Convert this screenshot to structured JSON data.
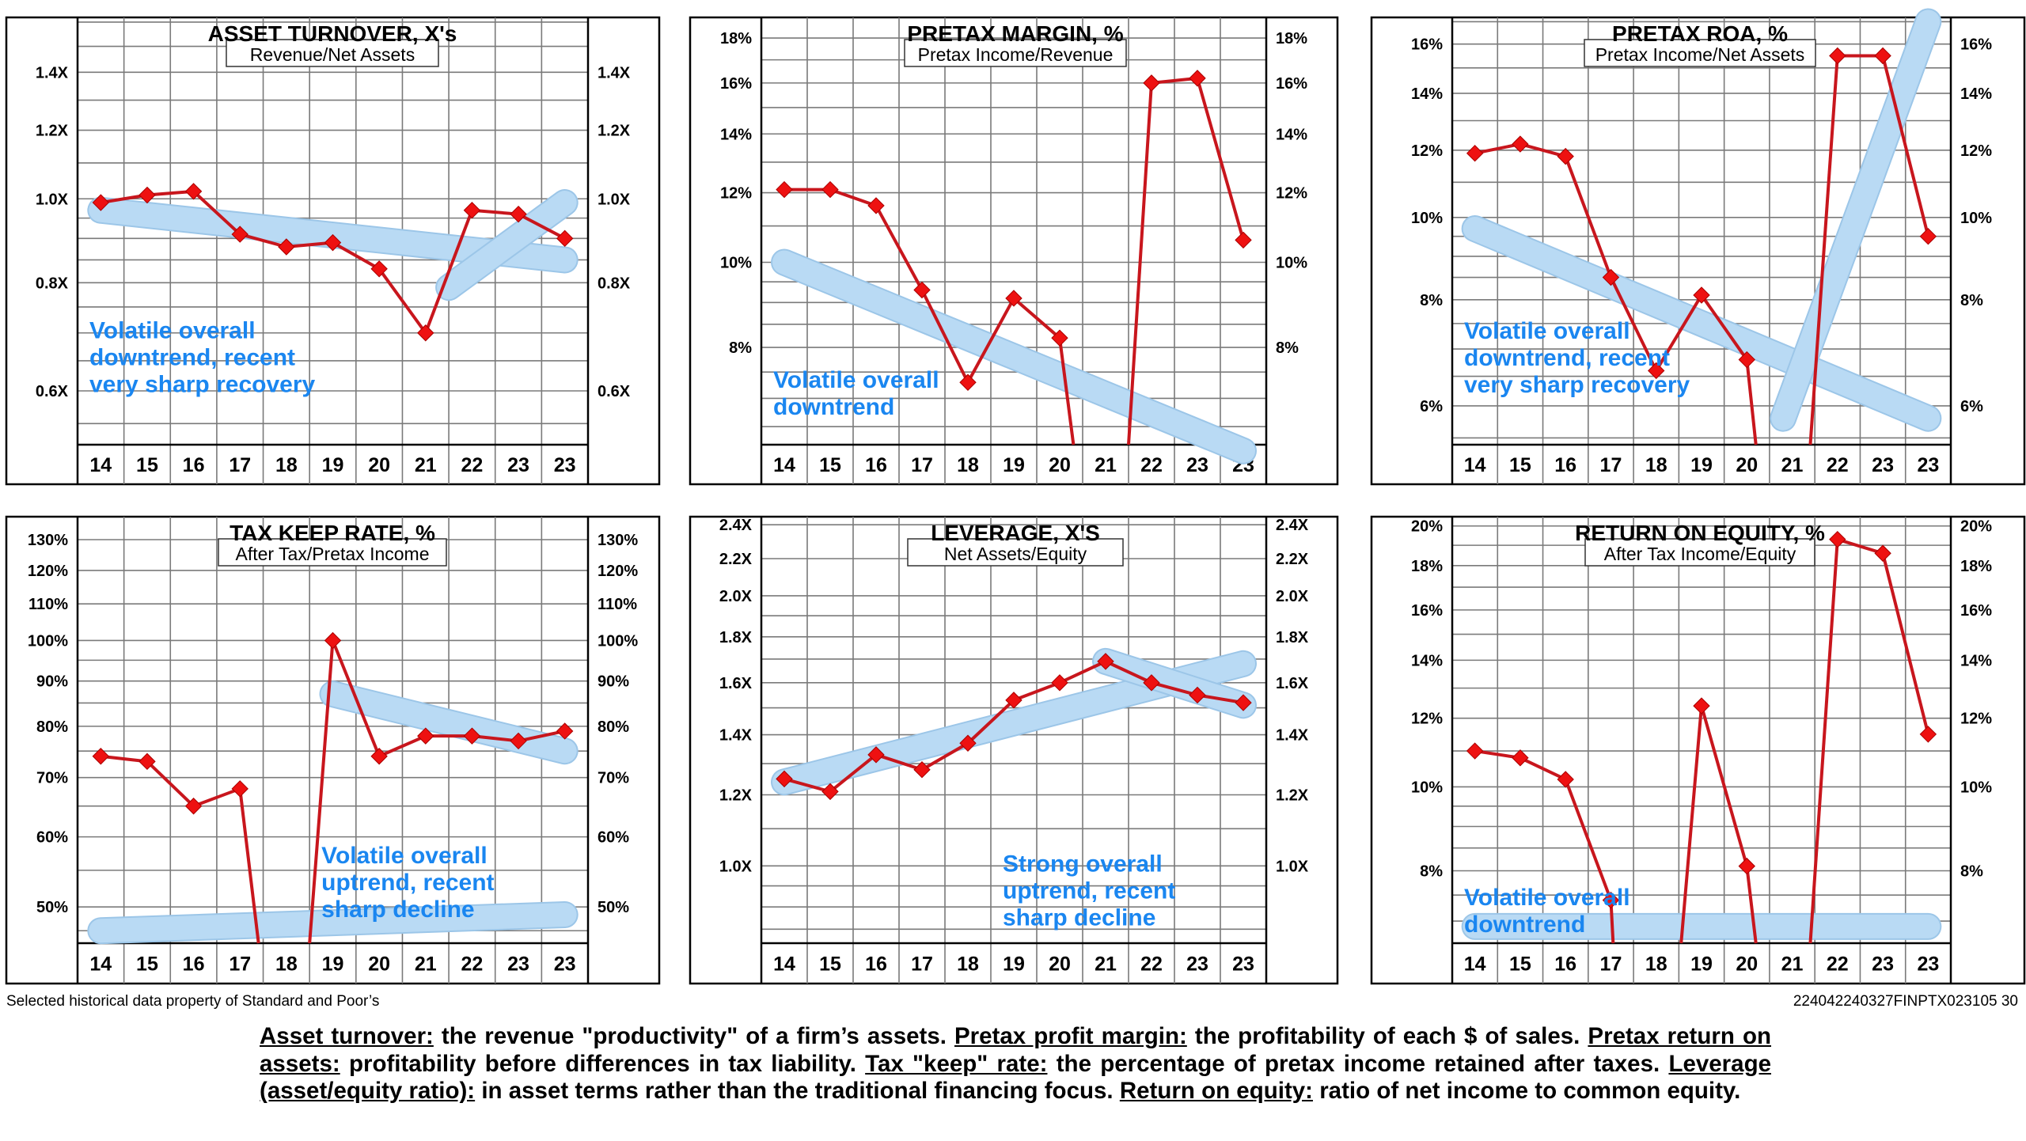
{
  "chart_data": [
    {
      "type": "line",
      "title": "ASSET TURNOVER, X's",
      "subtitle": "Revenue/Net Assets",
      "categories": [
        "14",
        "15",
        "16",
        "17",
        "18",
        "19",
        "20",
        "21",
        "22",
        "23",
        "23"
      ],
      "scale": "log",
      "ylim": [
        0.52,
        1.62
      ],
      "yticks": [
        {
          "v": 0.6,
          "label": "0.6X"
        },
        {
          "v": 0.8,
          "label": "0.8X"
        },
        {
          "v": 1.0,
          "label": "1.0X"
        },
        {
          "v": 1.2,
          "label": "1.2X"
        },
        {
          "v": 1.4,
          "label": "1.4X"
        }
      ],
      "grid_values": [
        0.55,
        0.6,
        0.65,
        0.7,
        0.75,
        0.8,
        0.85,
        0.9,
        0.95,
        1.0,
        1.1,
        1.2,
        1.3,
        1.4,
        1.5,
        1.6
      ],
      "series": [
        {
          "name": "value",
          "values": [
            0.99,
            1.01,
            1.02,
            0.91,
            0.88,
            0.89,
            0.83,
            0.7,
            0.97,
            0.96,
            0.9
          ],
          "breaks_after": []
        }
      ],
      "trends": [
        {
          "from": [
            0,
            0.97
          ],
          "to": [
            10,
            0.85
          ]
        },
        {
          "from": [
            7.5,
            0.79
          ],
          "to": [
            10,
            0.99
          ]
        }
      ],
      "annotation": [
        "Volatile overall",
        "downtrend,  recent",
        "very sharp recovery"
      ],
      "annotation_pos": {
        "col": 0.0,
        "value": 0.69
      }
    },
    {
      "type": "line",
      "title": "PRETAX MARGIN, %",
      "subtitle": "Pretax Income/Revenue",
      "categories": [
        "14",
        "15",
        "16",
        "17",
        "18",
        "19",
        "20",
        "21",
        "22",
        "23",
        "23"
      ],
      "scale": "log",
      "ylim": [
        6.2,
        19.0
      ],
      "yticks": [
        {
          "v": 8,
          "label": "8%"
        },
        {
          "v": 10,
          "label": "10%"
        },
        {
          "v": 12,
          "label": "12%"
        },
        {
          "v": 14,
          "label": "14%"
        },
        {
          "v": 16,
          "label": "16%"
        },
        {
          "v": 18,
          "label": "18%"
        }
      ],
      "grid_values": [
        6.5,
        7,
        7.5,
        8,
        8.5,
        9,
        9.5,
        10,
        11,
        12,
        13,
        14,
        15,
        16,
        17,
        18
      ],
      "series": [
        {
          "name": "value",
          "values": [
            12.1,
            12.1,
            11.6,
            9.3,
            7.3,
            9.1,
            8.2,
            null,
            16.0,
            16.2,
            10.6
          ],
          "drops": [
            {
              "from": 6,
              "toCol": 6.3
            },
            {
              "fromCol": 7.5,
              "to": 8
            }
          ]
        }
      ],
      "trends": [
        {
          "from": [
            0,
            10.0
          ],
          "to": [
            10,
            6.1
          ]
        }
      ],
      "annotation": [
        "Volatile overall",
        "downtrend"
      ],
      "annotation_pos": {
        "col": 0.0,
        "value": 7.2
      }
    },
    {
      "type": "line",
      "title": "PRETAX ROA, %",
      "subtitle": "Pretax Income/Net Assets",
      "categories": [
        "14",
        "15",
        "16",
        "17",
        "18",
        "19",
        "20",
        "21",
        "22",
        "23",
        "23"
      ],
      "scale": "log",
      "ylim": [
        5.4,
        17.2
      ],
      "yticks": [
        {
          "v": 6,
          "label": "6%"
        },
        {
          "v": 8,
          "label": "8%"
        },
        {
          "v": 10,
          "label": "10%"
        },
        {
          "v": 12,
          "label": "12%"
        },
        {
          "v": 14,
          "label": "14%"
        },
        {
          "v": 16,
          "label": "16%"
        }
      ],
      "grid_values": [
        5.5,
        6,
        6.5,
        7,
        7.5,
        8,
        8.5,
        9,
        9.5,
        10,
        11,
        12,
        13,
        14,
        15,
        16,
        17
      ],
      "series": [
        {
          "name": "value",
          "values": [
            11.9,
            12.2,
            11.8,
            8.5,
            6.6,
            8.1,
            6.8,
            null,
            15.5,
            15.5,
            9.5
          ],
          "drops": [
            {
              "from": 6,
              "toCol": 6.2
            },
            {
              "fromCol": 7.4,
              "to": 8
            }
          ]
        }
      ],
      "trends": [
        {
          "from": [
            0,
            9.7
          ],
          "to": [
            10,
            5.8
          ]
        },
        {
          "from": [
            6.8,
            5.8
          ],
          "to": [
            10,
            17.0
          ]
        }
      ],
      "annotation": [
        "Volatile overall",
        "downtrend,  recent",
        "very sharp recovery"
      ],
      "annotation_pos": {
        "col": 0.0,
        "value": 7.2
      }
    },
    {
      "type": "line",
      "title": "TAX KEEP RATE, %",
      "subtitle": "After Tax/Pretax Income",
      "categories": [
        "14",
        "15",
        "16",
        "17",
        "18",
        "19",
        "20",
        "21",
        "22",
        "23",
        "23"
      ],
      "scale": "log",
      "ylim": [
        45.5,
        138
      ],
      "yticks": [
        {
          "v": 50,
          "label": "50%"
        },
        {
          "v": 60,
          "label": "60%"
        },
        {
          "v": 70,
          "label": "70%"
        },
        {
          "v": 80,
          "label": "80%"
        },
        {
          "v": 90,
          "label": "90%"
        },
        {
          "v": 100,
          "label": "100%"
        },
        {
          "v": 110,
          "label": "110%"
        },
        {
          "v": 120,
          "label": "120%"
        },
        {
          "v": 130,
          "label": "130%"
        }
      ],
      "grid_values": [
        47,
        50,
        55,
        60,
        65,
        70,
        75,
        80,
        85,
        90,
        95,
        100,
        110,
        120,
        130
      ],
      "series": [
        {
          "name": "value",
          "values": [
            74,
            73,
            65,
            68,
            null,
            100,
            74,
            78,
            78,
            77,
            79
          ],
          "drops": [
            {
              "from": 3,
              "toCol": 3.4
            },
            {
              "fromCol": 4.5,
              "to": 5
            }
          ]
        }
      ],
      "trends": [
        {
          "from": [
            5,
            87
          ],
          "to": [
            10,
            75
          ]
        },
        {
          "from": [
            0,
            47
          ],
          "to": [
            10,
            49
          ]
        }
      ],
      "annotation": [
        "Volatile overall",
        "uptrend,  recent",
        "sharp decline"
      ],
      "annotation_pos": {
        "col": 5.0,
        "value": 56
      }
    },
    {
      "type": "line",
      "title": "LEVERAGE, X'S",
      "subtitle": "Net Assets/Equity",
      "categories": [
        "14",
        "15",
        "16",
        "17",
        "18",
        "19",
        "20",
        "21",
        "22",
        "23",
        "23"
      ],
      "scale": "log",
      "ylim": [
        0.82,
        2.45
      ],
      "yticks": [
        {
          "v": 1.0,
          "label": "1.0X"
        },
        {
          "v": 1.2,
          "label": "1.2X"
        },
        {
          "v": 1.4,
          "label": "1.4X"
        },
        {
          "v": 1.6,
          "label": "1.6X"
        },
        {
          "v": 1.8,
          "label": "1.8X"
        },
        {
          "v": 2.0,
          "label": "2.0X"
        },
        {
          "v": 2.2,
          "label": "2.2X"
        },
        {
          "v": 2.4,
          "label": "2.4X"
        }
      ],
      "grid_values": [
        0.85,
        0.9,
        0.95,
        1.0,
        1.1,
        1.2,
        1.3,
        1.4,
        1.5,
        1.6,
        1.7,
        1.8,
        1.9,
        2.0,
        2.2,
        2.4
      ],
      "series": [
        {
          "name": "value",
          "values": [
            1.25,
            1.21,
            1.33,
            1.28,
            1.37,
            1.53,
            1.6,
            1.69,
            1.6,
            1.55,
            1.52
          ],
          "drops": []
        }
      ],
      "trends": [
        {
          "from": [
            0,
            1.24
          ],
          "to": [
            10,
            1.68
          ]
        },
        {
          "from": [
            7,
            1.69
          ],
          "to": [
            10,
            1.51
          ]
        }
      ],
      "annotation": [
        "Strong overall",
        "uptrend,  recent",
        "sharp decline"
      ],
      "annotation_pos": {
        "col": 5.0,
        "value": 0.985
      }
    },
    {
      "type": "line",
      "title": "RETURN ON EQUITY, %",
      "subtitle": "After Tax Income/Equity",
      "categories": [
        "14",
        "15",
        "16",
        "17",
        "18",
        "19",
        "20",
        "21",
        "22",
        "23",
        "23"
      ],
      "scale": "log",
      "ylim": [
        6.6,
        20.5
      ],
      "yticks": [
        {
          "v": 8,
          "label": "8%"
        },
        {
          "v": 10,
          "label": "10%"
        },
        {
          "v": 12,
          "label": "12%"
        },
        {
          "v": 14,
          "label": "14%"
        },
        {
          "v": 16,
          "label": "16%"
        },
        {
          "v": 18,
          "label": "18%"
        },
        {
          "v": 20,
          "label": "20%"
        }
      ],
      "grid_values": [
        7,
        7.5,
        8,
        8.5,
        9,
        9.5,
        10,
        11,
        12,
        13,
        14,
        15,
        16,
        17,
        18,
        19,
        20
      ],
      "series": [
        {
          "name": "value",
          "values": [
            11.0,
            10.8,
            10.2,
            7.4,
            null,
            12.4,
            8.1,
            null,
            19.3,
            18.6,
            11.5
          ],
          "drops": [
            {
              "from": 3,
              "toCol": 3.05,
              "toBottom": true
            },
            {
              "fromCol": 4.55,
              "to": 5,
              "fromBottom": true
            },
            {
              "from": 6,
              "toCol": 6.2,
              "toBottom": true
            },
            {
              "fromCol": 7.4,
              "to": 8,
              "fromBottom": true
            }
          ]
        }
      ],
      "trends": [
        {
          "from": [
            0,
            6.9
          ],
          "to": [
            10,
            6.9
          ]
        }
      ],
      "annotation": [
        "Volatile overall",
        "downtrend"
      ],
      "annotation_pos": {
        "col": 0.0,
        "value": 7.3
      }
    }
  ],
  "footer": {
    "source": "Selected historical data property of Standard and Poor’s",
    "code": "224042240327FINPTX023105  30"
  },
  "definitions": [
    {
      "term": "Asset turnover:",
      "text": " the revenue \"productivity\" of a firm’s assets. "
    },
    {
      "term": "Pretax profit margin:",
      "text": " the profitability of each $ of sales. "
    },
    {
      "term": "Pretax return on assets:",
      "text": " profitability before differences in tax liability. "
    },
    {
      "term": "Tax \"keep\" rate:",
      "text": " the percentage of pretax income retained after taxes. "
    },
    {
      "term": "Leverage (asset/equity ratio):",
      "text": " in asset terms rather than the traditional financing focus. "
    },
    {
      "term": "Return on equity:",
      "text": " ratio of net income to common equity."
    }
  ],
  "colors": {
    "line": "#c8161d",
    "marker": "#ee1111",
    "trend": "#b9daf4",
    "trend_edge": "#9cc6e8",
    "annotation": "#1a86f0",
    "grid": "#7a7a7a",
    "frame": "#000000"
  }
}
